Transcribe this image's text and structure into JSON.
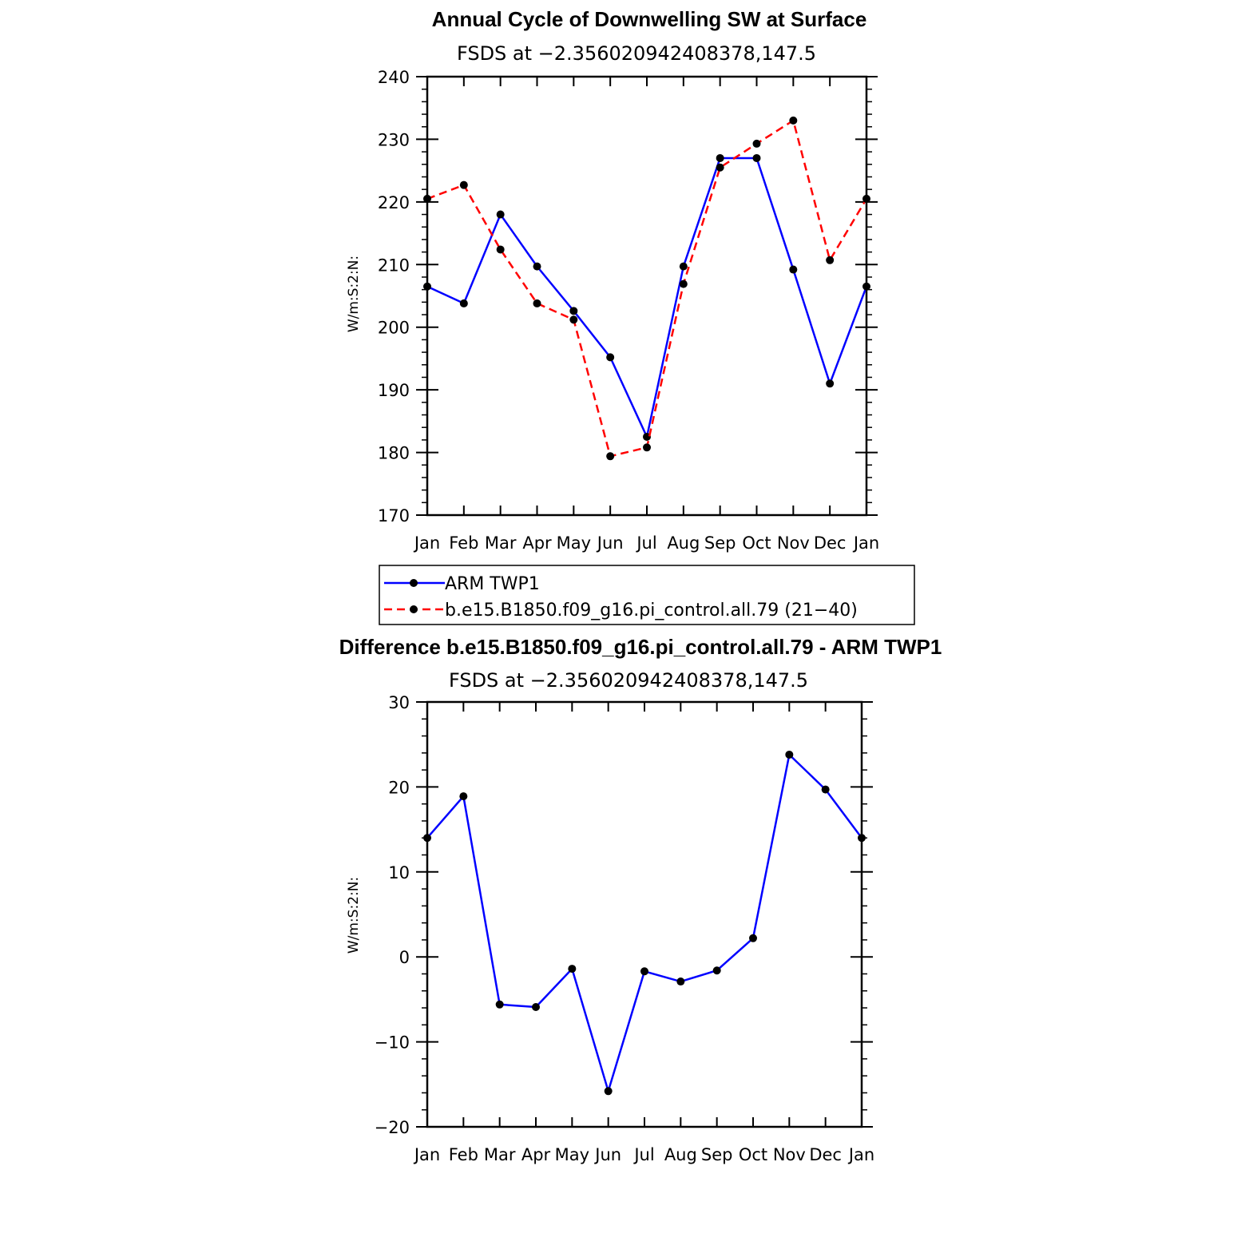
{
  "chart_data": [
    {
      "type": "line",
      "title": "Annual Cycle of Downwelling SW at Surface",
      "subtitle": "FSDS at −2.356020942408378,147.5",
      "ylabel": "W/m:S:2:N:",
      "xlabel": "",
      "categories": [
        "Jan",
        "Feb",
        "Mar",
        "Apr",
        "May",
        "Jun",
        "Jul",
        "Aug",
        "Sep",
        "Oct",
        "Nov",
        "Dec",
        "Jan"
      ],
      "ylim": [
        170,
        240
      ],
      "yticks": [
        "170",
        "180",
        "190",
        "200",
        "210",
        "220",
        "230",
        "240"
      ],
      "series": [
        {
          "name": "ARM TWP1",
          "color": "#0000ff",
          "dash": "solid",
          "values": [
            206.5,
            203.8,
            218.0,
            209.7,
            202.6,
            195.2,
            182.5,
            209.7,
            227.0,
            227.0,
            209.2,
            191.0,
            206.5
          ]
        },
        {
          "name": "b.e15.B1850.f09_g16.pi_control.all.79 (21−40)",
          "color": "#ff0000",
          "dash": "dashed",
          "values": [
            220.5,
            222.7,
            212.4,
            203.8,
            201.2,
            179.4,
            180.8,
            206.9,
            225.5,
            229.3,
            233.0,
            210.7,
            220.5
          ]
        }
      ],
      "legend": "below"
    },
    {
      "type": "line",
      "title": "Difference b.e15.B1850.f09_g16.pi_control.all.79 - ARM TWP1",
      "subtitle": "FSDS at −2.356020942408378,147.5",
      "ylabel": "W/m:S:2:N:",
      "xlabel": "",
      "categories": [
        "Jan",
        "Feb",
        "Mar",
        "Apr",
        "May",
        "Jun",
        "Jul",
        "Aug",
        "Sep",
        "Oct",
        "Nov",
        "Dec",
        "Jan"
      ],
      "ylim": [
        -20,
        30
      ],
      "yticks": [
        "−20",
        "−10",
        "0",
        "10",
        "20",
        "30"
      ],
      "series": [
        {
          "color": "#0000ff",
          "dash": "solid",
          "values": [
            14.0,
            18.9,
            -5.6,
            -5.9,
            -1.4,
            -15.8,
            -1.7,
            -2.9,
            -1.6,
            2.2,
            23.8,
            19.7,
            14.0
          ]
        }
      ]
    }
  ]
}
